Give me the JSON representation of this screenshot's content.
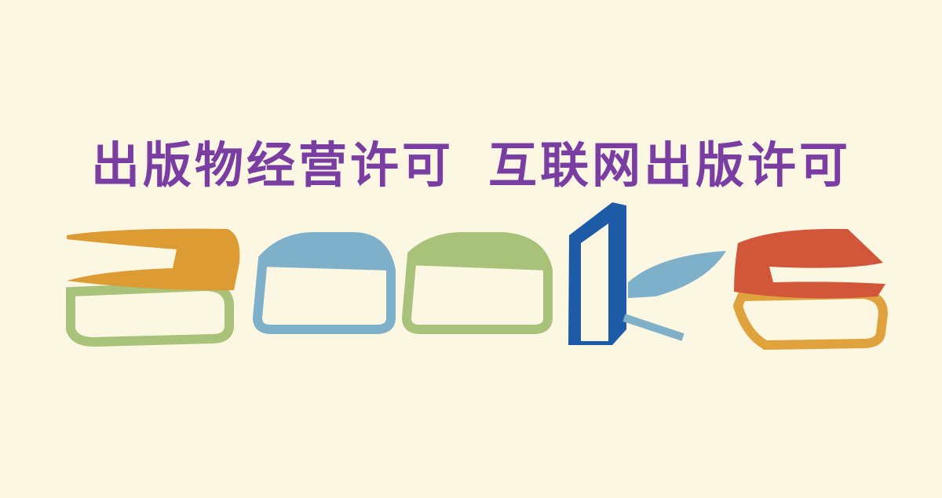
{
  "headline": [
    "出版物经营许可",
    "互联网出版许可"
  ]
}
